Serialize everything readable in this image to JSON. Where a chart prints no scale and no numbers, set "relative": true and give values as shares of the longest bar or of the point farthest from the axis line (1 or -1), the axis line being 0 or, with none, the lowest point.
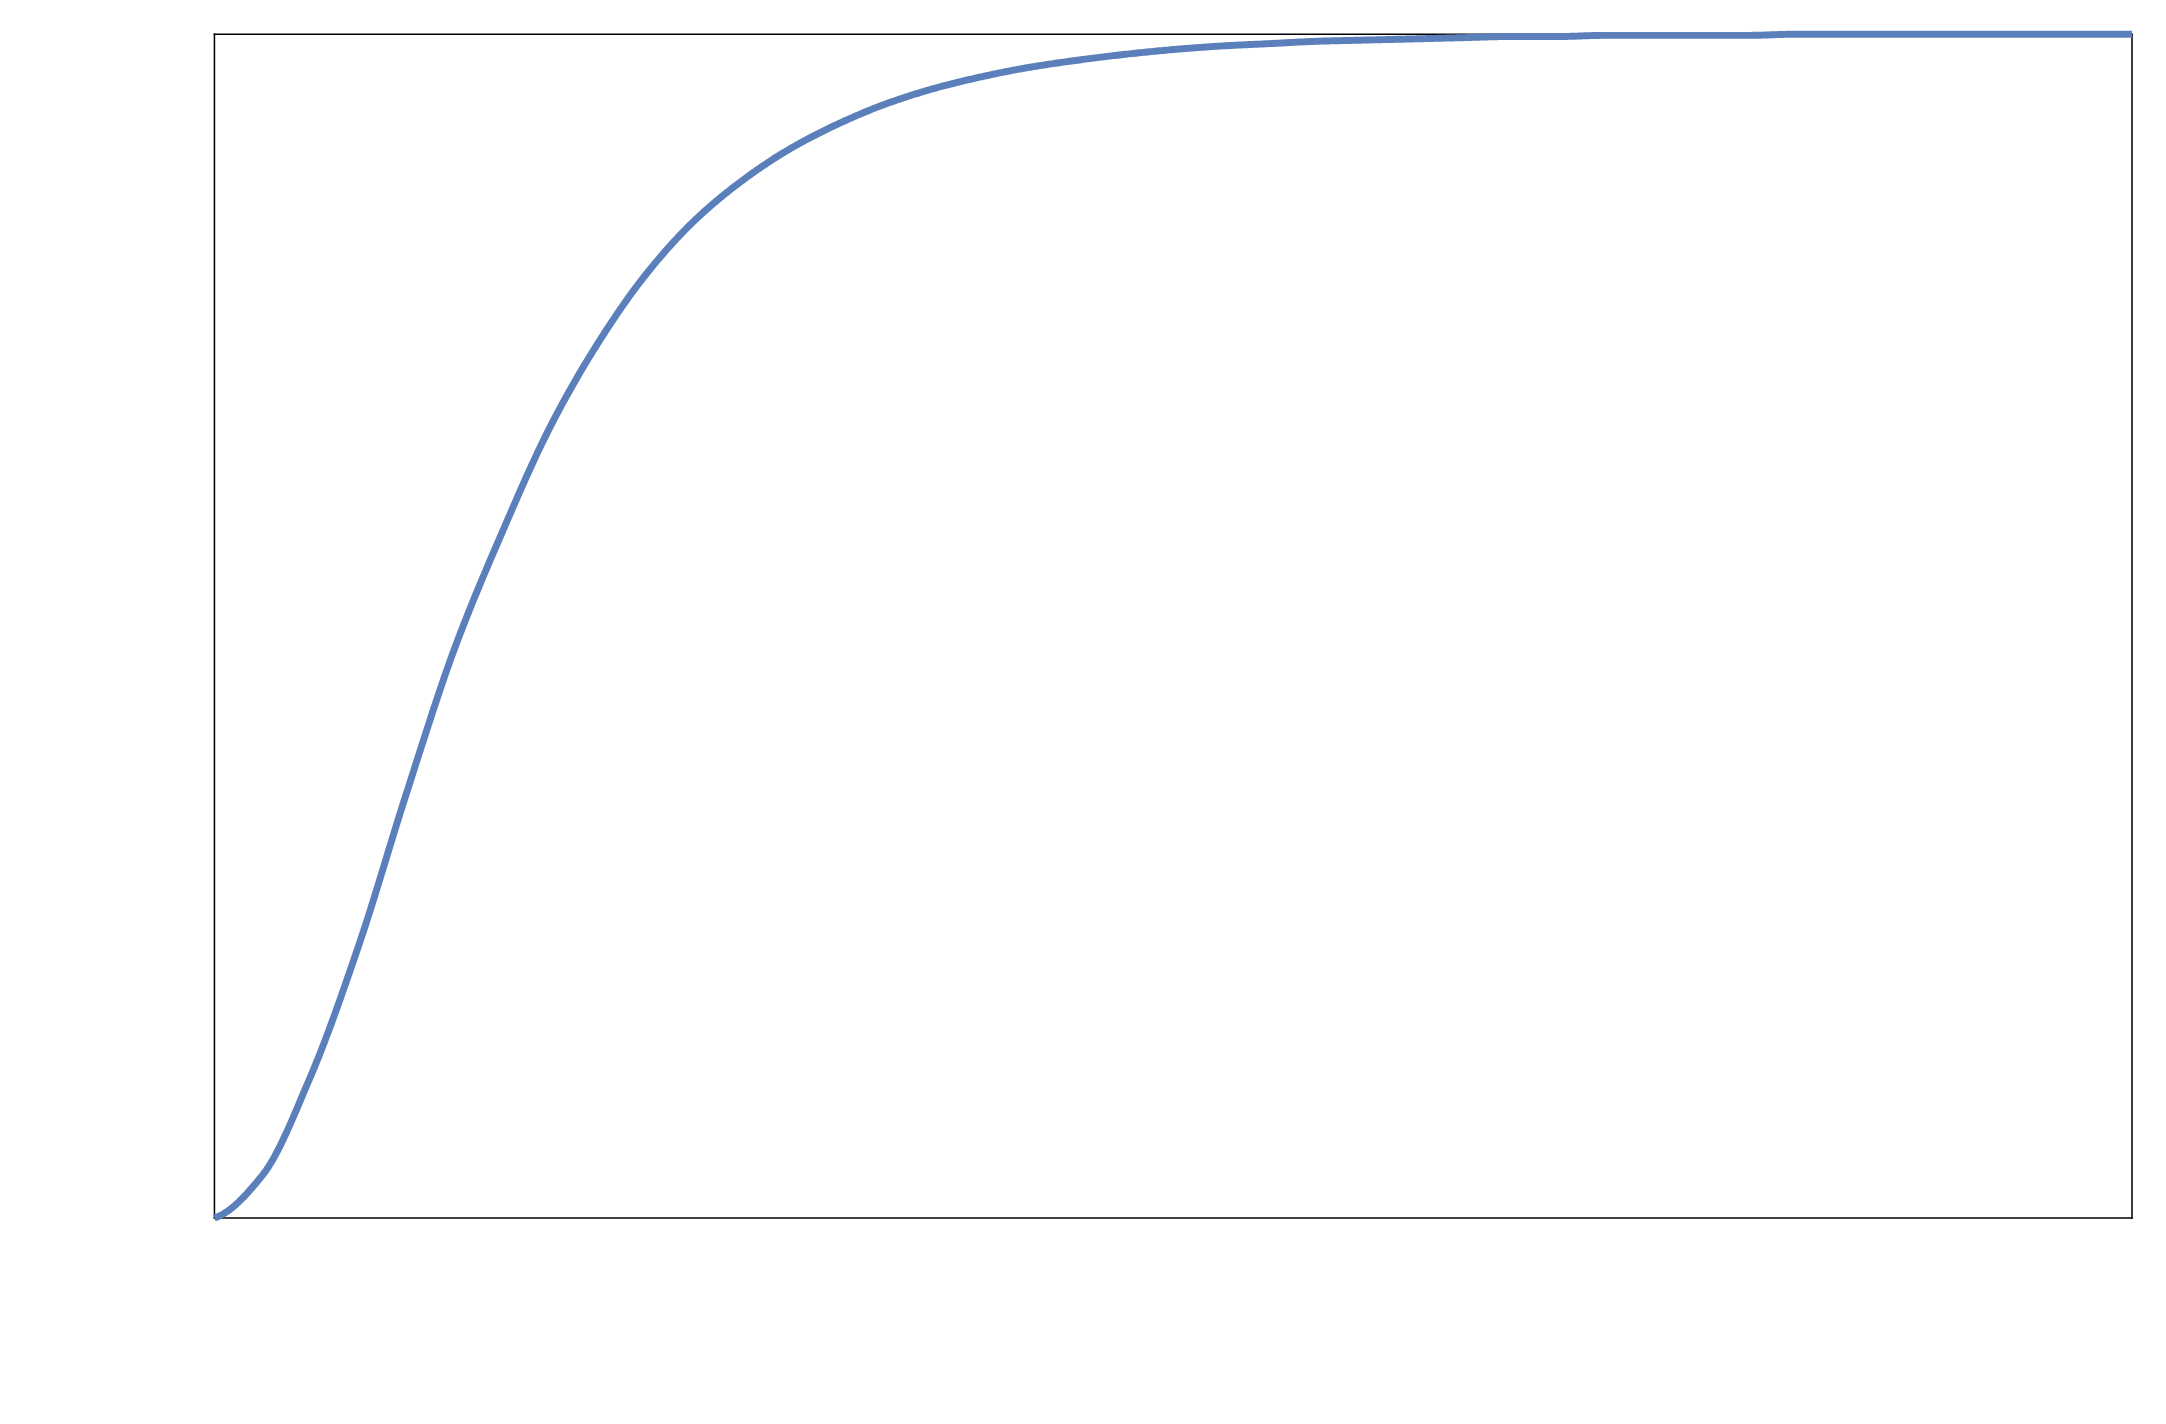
{
  "chart_data": {
    "type": "line",
    "relative": true,
    "categories": [
      null,
      null,
      null,
      null,
      null,
      null,
      null,
      null,
      null,
      null,
      null,
      null,
      null,
      null,
      null,
      null,
      null,
      null,
      null,
      null,
      null,
      null,
      null,
      null,
      null,
      null,
      null,
      null,
      null,
      null,
      null,
      null,
      null,
      null,
      null,
      null,
      null,
      null,
      null,
      null,
      null
    ],
    "series": [
      {
        "color": "#5a7fbb",
        "values": [
          0,
          0.036,
          0.119,
          0.229,
          0.358,
          0.48,
          0.579,
          0.668,
          0.739,
          0.797,
          0.842,
          0.876,
          0.903,
          0.924,
          0.941,
          0.954,
          0.964,
          0.972,
          0.978,
          0.983,
          0.987,
          0.99,
          0.992,
          0.994,
          0.995,
          0.996,
          0.997,
          0.998,
          0.998,
          0.999,
          0.999,
          0.999,
          0.999,
          1,
          1,
          1,
          1,
          1,
          1,
          1,
          1
        ]
      }
    ],
    "marker": "none",
    "line_style": "solid"
  }
}
